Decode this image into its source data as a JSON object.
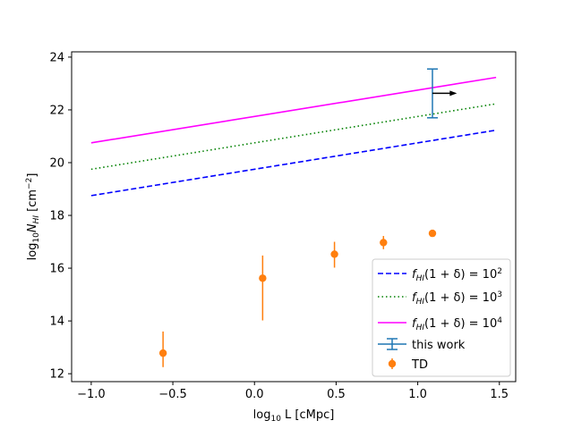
{
  "chart_data": {
    "type": "scatter",
    "title": "",
    "xlabel": "log10 L [cMpc]",
    "ylabel": "log10 N_HI [cm^-2]",
    "xlim": [
      -1.12,
      1.6
    ],
    "ylim": [
      11.7,
      24.2
    ],
    "xticks": [
      -1.0,
      -0.5,
      0.0,
      0.5,
      1.0,
      1.5
    ],
    "xtick_labels": [
      "−1.0",
      "−0.5",
      "0.0",
      "0.5",
      "1.0",
      "1.5"
    ],
    "yticks": [
      12,
      14,
      16,
      18,
      20,
      22,
      24
    ],
    "ytick_labels": [
      "12",
      "14",
      "16",
      "18",
      "20",
      "22",
      "24"
    ],
    "grid": false,
    "legend_position": "lower-right",
    "series": [
      {
        "name": "fHI(1+δ)=10^2",
        "kind": "line",
        "style": "dashed",
        "color": "#0000ff",
        "x": [
          -1.0,
          1.48
        ],
        "y": [
          18.75,
          21.23
        ]
      },
      {
        "name": "fHI(1+δ)=10^3",
        "kind": "line",
        "style": "dotted",
        "color": "#008000",
        "x": [
          -1.0,
          1.48
        ],
        "y": [
          19.75,
          22.23
        ]
      },
      {
        "name": "fHI(1+δ)=10^4",
        "kind": "line",
        "style": "solid",
        "color": "#ff00ff",
        "x": [
          -1.0,
          1.48
        ],
        "y": [
          20.75,
          23.23
        ]
      },
      {
        "name": "this work",
        "kind": "errorbar",
        "color": "#1f77b4",
        "marker": "none",
        "points": [
          {
            "x": 1.09,
            "y": 22.63,
            "ylow": 21.7,
            "yhigh": 23.55,
            "lower_limit_x": true,
            "arrow_to_x": 1.24
          }
        ]
      },
      {
        "name": "TD",
        "kind": "errorbar",
        "color": "#ff7f0e",
        "marker": "circle",
        "points": [
          {
            "x": -0.56,
            "y": 12.78,
            "ylow": 12.25,
            "yhigh": 13.6
          },
          {
            "x": 0.05,
            "y": 15.62,
            "ylow": 14.02,
            "yhigh": 16.48
          },
          {
            "x": 0.49,
            "y": 16.53,
            "ylow": 16.02,
            "yhigh": 17.0
          },
          {
            "x": 0.79,
            "y": 16.97,
            "ylow": 16.72,
            "yhigh": 17.22
          },
          {
            "x": 1.09,
            "y": 17.32,
            "ylow": 17.2,
            "yhigh": 17.45
          }
        ]
      }
    ],
    "legend": [
      {
        "label_main": "f",
        "label_sub": "HI",
        "label_rest": "(1 + δ) = 10",
        "label_sup": "2"
      },
      {
        "label_main": "f",
        "label_sub": "HI",
        "label_rest": "(1 + δ) = 10",
        "label_sup": "3"
      },
      {
        "label_main": "f",
        "label_sub": "HI",
        "label_rest": "(1 + δ) = 10",
        "label_sup": "4"
      },
      {
        "label_plain": "this work"
      },
      {
        "label_plain": "TD"
      }
    ],
    "xlabel_parts": {
      "pre": "log",
      "sub": "10",
      "post": " L [cMpc]"
    },
    "ylabel_parts": {
      "pre": "log",
      "sub": "10",
      "italic": "N",
      "isub": "HI",
      "post": " [cm",
      "sup": "−2",
      "end": "]"
    }
  }
}
